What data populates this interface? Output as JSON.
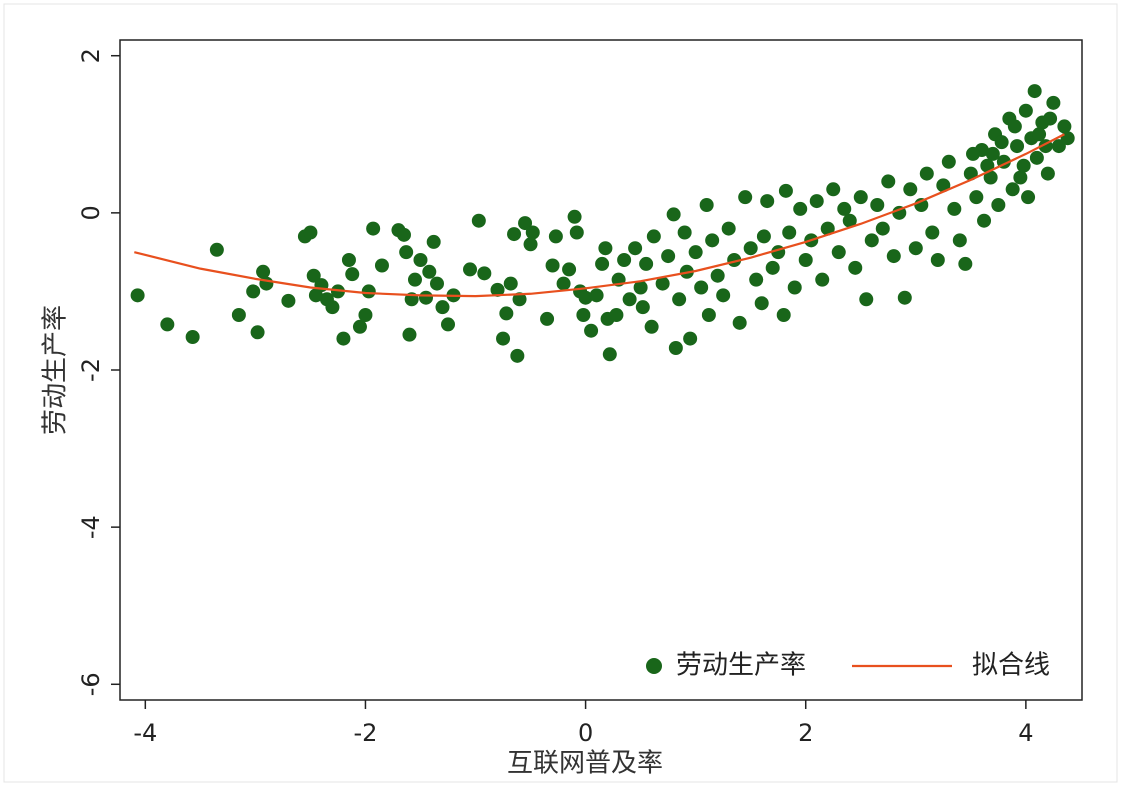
{
  "chart_data": {
    "type": "scatter",
    "x_label": "互联网普及率",
    "y_label": "劳动生产率",
    "xlim": [
      -4.23,
      4.51
    ],
    "ylim": [
      -6.2,
      2.2
    ],
    "xticks": [
      -4,
      -2,
      0,
      2,
      4
    ],
    "yticks": [
      -6,
      -4,
      -2,
      0,
      2
    ],
    "legend": "lower right",
    "series": [
      {
        "name": "劳动生产率",
        "type": "scatter",
        "color": "#19661a",
        "x": [
          -4.07,
          -3.8,
          -3.57,
          -3.35,
          -3.15,
          -3.02,
          -2.98,
          -2.93,
          -2.9,
          -2.7,
          -2.55,
          -2.5,
          -2.47,
          -2.45,
          -2.4,
          -2.35,
          -2.3,
          -2.25,
          -2.2,
          -2.15,
          -2.12,
          -2.05,
          -2.0,
          -1.97,
          -1.93,
          -1.85,
          -1.7,
          -1.65,
          -1.63,
          -1.6,
          -1.58,
          -1.55,
          -1.5,
          -1.45,
          -1.42,
          -1.38,
          -1.35,
          -1.3,
          -1.25,
          -1.2,
          -1.05,
          -0.97,
          -0.92,
          -0.8,
          -0.75,
          -0.72,
          -0.68,
          -0.65,
          -0.62,
          -0.6,
          -0.55,
          -0.5,
          -0.48,
          -0.35,
          -0.3,
          -0.27,
          -0.2,
          -0.15,
          -0.1,
          -0.08,
          -0.05,
          -0.02,
          0.0,
          0.05,
          0.1,
          0.15,
          0.18,
          0.2,
          0.22,
          0.28,
          0.3,
          0.35,
          0.4,
          0.45,
          0.5,
          0.52,
          0.55,
          0.6,
          0.62,
          0.7,
          0.75,
          0.8,
          0.82,
          0.85,
          0.9,
          0.92,
          0.95,
          1.0,
          1.05,
          1.1,
          1.12,
          1.15,
          1.2,
          1.25,
          1.3,
          1.35,
          1.4,
          1.45,
          1.5,
          1.55,
          1.6,
          1.62,
          1.65,
          1.7,
          1.75,
          1.8,
          1.82,
          1.85,
          1.9,
          1.95,
          2.0,
          2.05,
          2.1,
          2.15,
          2.2,
          2.25,
          2.3,
          2.35,
          2.4,
          2.45,
          2.5,
          2.55,
          2.6,
          2.65,
          2.7,
          2.75,
          2.8,
          2.85,
          2.9,
          2.95,
          3.0,
          3.05,
          3.1,
          3.15,
          3.2,
          3.25,
          3.3,
          3.35,
          3.4,
          3.45,
          3.5,
          3.55,
          3.6,
          3.62,
          3.68,
          3.72,
          3.75,
          3.8,
          3.85,
          3.88,
          3.92,
          3.95,
          4.0,
          4.02,
          4.05,
          4.08,
          4.1,
          4.15,
          4.2,
          4.25,
          4.3,
          4.35,
          4.38,
          4.22,
          4.12,
          3.98,
          3.7,
          3.9,
          4.18,
          3.78,
          3.65,
          3.52
        ],
        "values": [
          -1.05,
          -1.42,
          -1.58,
          -0.47,
          -1.3,
          -1.0,
          -1.52,
          -0.75,
          -0.9,
          -1.12,
          -0.3,
          -0.25,
          -0.8,
          -1.05,
          -0.92,
          -1.1,
          -1.2,
          -1.0,
          -1.6,
          -0.6,
          -0.78,
          -1.45,
          -1.3,
          -1.0,
          -0.2,
          -0.67,
          -0.22,
          -0.28,
          -0.5,
          -1.55,
          -1.1,
          -0.85,
          -0.6,
          -1.08,
          -0.75,
          -0.37,
          -0.9,
          -1.2,
          -1.42,
          -1.05,
          -0.72,
          -0.1,
          -0.77,
          -0.98,
          -1.6,
          -1.28,
          -0.9,
          -0.27,
          -1.82,
          -1.1,
          -0.13,
          -0.4,
          -0.25,
          -1.35,
          -0.67,
          -0.3,
          -0.9,
          -0.72,
          -0.05,
          -0.25,
          -1.0,
          -1.3,
          -1.08,
          -1.5,
          -1.05,
          -0.65,
          -0.45,
          -1.35,
          -1.8,
          -1.3,
          -0.85,
          -0.6,
          -1.1,
          -0.45,
          -0.95,
          -1.2,
          -0.65,
          -1.45,
          -0.3,
          -0.9,
          -0.55,
          -0.02,
          -1.72,
          -1.1,
          -0.25,
          -0.75,
          -1.6,
          -0.5,
          -0.95,
          0.1,
          -1.3,
          -0.35,
          -0.8,
          -1.05,
          -0.2,
          -0.6,
          -1.4,
          0.2,
          -0.45,
          -0.85,
          -1.15,
          -0.3,
          0.15,
          -0.7,
          -0.5,
          -1.3,
          0.28,
          -0.25,
          -0.95,
          0.05,
          -0.6,
          -0.35,
          0.15,
          -0.85,
          -0.2,
          0.3,
          -0.5,
          0.05,
          -0.1,
          -0.7,
          0.2,
          -1.1,
          -0.35,
          0.1,
          -0.2,
          0.4,
          -0.55,
          0.0,
          -1.08,
          0.3,
          -0.45,
          0.1,
          0.5,
          -0.25,
          -0.6,
          0.35,
          0.65,
          0.05,
          -0.35,
          -0.65,
          0.5,
          0.2,
          0.8,
          -0.1,
          0.45,
          1.0,
          0.1,
          0.65,
          1.2,
          0.3,
          0.85,
          0.45,
          1.3,
          0.2,
          0.95,
          1.55,
          0.7,
          1.15,
          0.5,
          1.4,
          0.85,
          1.1,
          0.95,
          1.2,
          1.0,
          0.6,
          0.75,
          1.1,
          0.85,
          0.9,
          0.6,
          0.75
        ]
      },
      {
        "name": "拟合线",
        "type": "line",
        "color": "#e8501e",
        "x": [
          -4.1,
          -3.5,
          -3,
          -2.5,
          -2,
          -1.5,
          -1,
          -0.5,
          0,
          0.5,
          1,
          1.5,
          2,
          2.5,
          3,
          3.5,
          4,
          4.35
        ],
        "values": [
          -0.5,
          -0.71,
          -0.84,
          -0.95,
          -1.02,
          -1.05,
          -1.06,
          -1.03,
          -0.96,
          -0.87,
          -0.74,
          -0.57,
          -0.37,
          -0.14,
          0.12,
          0.42,
          0.75,
          1.0
        ]
      }
    ]
  }
}
